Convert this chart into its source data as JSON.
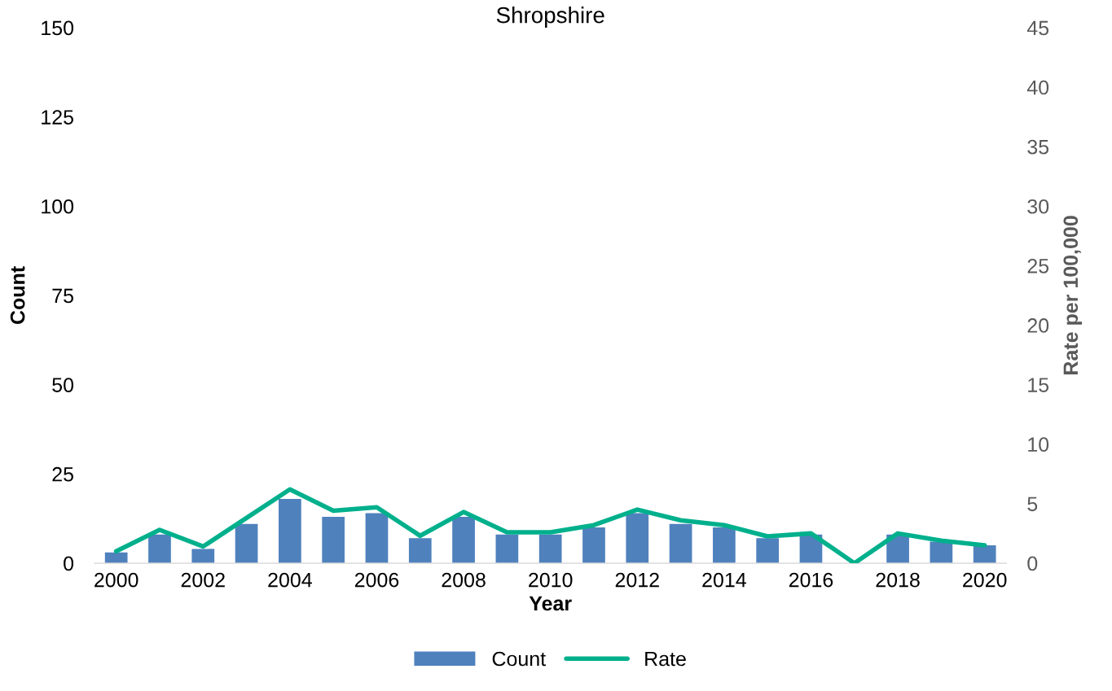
{
  "chart_data": {
    "type": "bar",
    "title": "Shropshire",
    "xlabel": "Year",
    "ylabel": "Count",
    "y2label": "Rate per 100,000",
    "categories": [
      "2000",
      null,
      "2002",
      null,
      "2004",
      null,
      "2006",
      null,
      "2008",
      null,
      "2010",
      null,
      "2012",
      null,
      "2014",
      null,
      "2016",
      null,
      "2018",
      null,
      "2020"
    ],
    "series": [
      {
        "name": "Count",
        "color": "#4f81bd",
        "values": [
          3,
          8,
          4,
          11,
          18,
          13,
          14,
          7,
          13,
          8,
          8,
          10,
          14,
          11,
          10,
          7,
          8,
          0,
          8,
          6,
          5
        ]
      },
      {
        "name": "Rate",
        "type": "line",
        "axis": "y2",
        "color": "#00b08c",
        "values": [
          1.0,
          2.8,
          1.4,
          3.8,
          6.2,
          4.4,
          4.7,
          2.3,
          4.3,
          2.6,
          2.6,
          3.2,
          4.5,
          3.6,
          3.2,
          2.25,
          2.5,
          0,
          2.5,
          1.9,
          1.5
        ]
      }
    ],
    "ylim": [
      0,
      150
    ],
    "yticks": [
      0,
      25,
      50,
      75,
      100,
      125,
      150
    ],
    "y2lim": [
      0,
      45
    ],
    "y2ticks": [
      0,
      5,
      10,
      15,
      20,
      25,
      30,
      35,
      40,
      45
    ],
    "grid": false,
    "legend": "bottom"
  }
}
